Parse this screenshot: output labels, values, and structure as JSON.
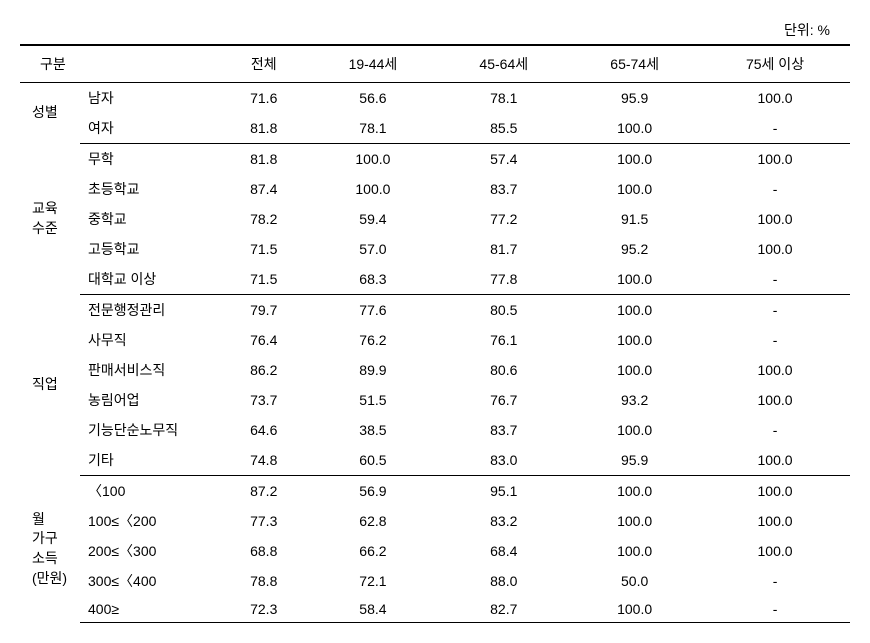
{
  "unit_label": "단위: %",
  "columns": {
    "gubun": "구분",
    "total": "전체",
    "age_19_44": "19-44세",
    "age_45_64": "45-64세",
    "age_65_74": "65-74세",
    "age_75_plus": "75세 이상"
  },
  "groups": [
    {
      "label": "성별",
      "rows": [
        {
          "label": "남자",
          "values": [
            "71.6",
            "56.6",
            "78.1",
            "95.9",
            "100.0"
          ]
        },
        {
          "label": "여자",
          "values": [
            "81.8",
            "78.1",
            "85.5",
            "100.0",
            "-"
          ]
        }
      ]
    },
    {
      "label": "교육\n수준",
      "rows": [
        {
          "label": "무학",
          "values": [
            "81.8",
            "100.0",
            "57.4",
            "100.0",
            "100.0"
          ]
        },
        {
          "label": "초등학교",
          "values": [
            "87.4",
            "100.0",
            "83.7",
            "100.0",
            "-"
          ]
        },
        {
          "label": "중학교",
          "values": [
            "78.2",
            "59.4",
            "77.2",
            "91.5",
            "100.0"
          ]
        },
        {
          "label": "고등학교",
          "values": [
            "71.5",
            "57.0",
            "81.7",
            "95.2",
            "100.0"
          ]
        },
        {
          "label": "대학교 이상",
          "values": [
            "71.5",
            "68.3",
            "77.8",
            "100.0",
            "-"
          ]
        }
      ]
    },
    {
      "label": "직업",
      "rows": [
        {
          "label": "전문행정관리",
          "values": [
            "79.7",
            "77.6",
            "80.5",
            "100.0",
            "-"
          ]
        },
        {
          "label": "사무직",
          "values": [
            "76.4",
            "76.2",
            "76.1",
            "100.0",
            "-"
          ]
        },
        {
          "label": "판매서비스직",
          "values": [
            "86.2",
            "89.9",
            "80.6",
            "100.0",
            "100.0"
          ]
        },
        {
          "label": "농림어업",
          "values": [
            "73.7",
            "51.5",
            "76.7",
            "93.2",
            "100.0"
          ]
        },
        {
          "label": "기능단순노무직",
          "values": [
            "64.6",
            "38.5",
            "83.7",
            "100.0",
            "-"
          ]
        },
        {
          "label": "기타",
          "values": [
            "74.8",
            "60.5",
            "83.0",
            "95.9",
            "100.0"
          ]
        }
      ]
    },
    {
      "label": "월\n가구\n소득\n(만원)",
      "rows": [
        {
          "label": "〈100",
          "values": [
            "87.2",
            "56.9",
            "95.1",
            "100.0",
            "100.0"
          ]
        },
        {
          "label": "100≤〈200",
          "values": [
            "77.3",
            "62.8",
            "83.2",
            "100.0",
            "100.0"
          ]
        },
        {
          "label": "200≤〈300",
          "values": [
            "68.8",
            "66.2",
            "68.4",
            "100.0",
            "100.0"
          ]
        },
        {
          "label": "300≤〈400",
          "values": [
            "78.8",
            "72.1",
            "88.0",
            "50.0",
            "-"
          ]
        },
        {
          "label": "400≥",
          "values": [
            "72.3",
            "58.4",
            "82.7",
            "100.0",
            "-"
          ]
        }
      ]
    }
  ],
  "styling": {
    "font_family": "Malgun Gothic",
    "font_size_pt": 11,
    "text_color": "#000000",
    "background_color": "#ffffff",
    "border_color": "#000000",
    "header_border_top_width": 2,
    "section_border_width": 1,
    "column_widths_pct": [
      8,
      18,
      14.8,
      14.8,
      14.8,
      14.8,
      14.8
    ],
    "cell_alignment": {
      "group_label": "left",
      "row_label": "left",
      "data": "center"
    }
  }
}
